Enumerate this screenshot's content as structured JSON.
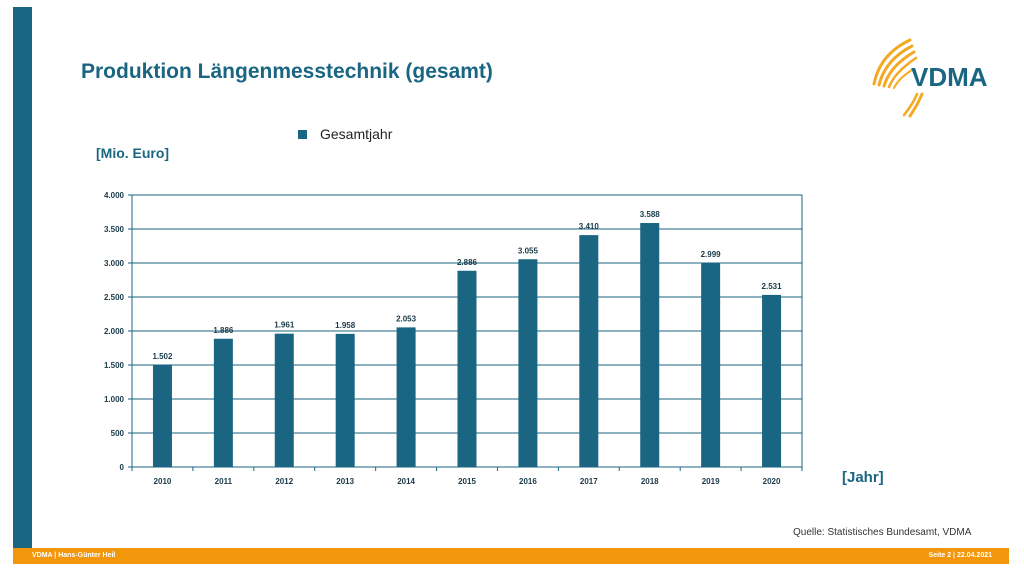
{
  "slide": {
    "title": "Produktion Längenmesstechnik (gesamt)",
    "y_unit_label": "[Mio. Euro]",
    "x_unit_label": "[Jahr]",
    "source": "Quelle: Statistisches Bundesamt, VDMA",
    "footer_left": "VDMA | Hans-Günter Heil",
    "footer_right": "Seite 2 | 22.04.2021",
    "logo_text": "VDMA"
  },
  "colors": {
    "primary": "#1a6682",
    "accent": "#f2960c",
    "logo_arc": "#f5a821"
  },
  "chart_data": {
    "type": "bar",
    "categories": [
      "2010",
      "2011",
      "2012",
      "2013",
      "2014",
      "2015",
      "2016",
      "2017",
      "2018",
      "2019",
      "2020"
    ],
    "series": [
      {
        "name": "Gesamtjahr",
        "values": [
          1502,
          1886,
          1961,
          1958,
          2053,
          2886,
          3055,
          3410,
          3588,
          2999,
          2531
        ],
        "labels": [
          "1.502",
          "1.886",
          "1.961",
          "1.958",
          "2.053",
          "2.886",
          "3.055",
          "3.410",
          "3.588",
          "2.999",
          "2.531"
        ]
      }
    ],
    "ylim": [
      0,
      4000
    ],
    "yticks": [
      0,
      500,
      1000,
      1500,
      2000,
      2500,
      3000,
      3500,
      4000
    ],
    "ytick_labels": [
      "0",
      "500",
      "1.000",
      "1.500",
      "2.000",
      "2.500",
      "3.000",
      "3.500",
      "4.000"
    ],
    "grid": true,
    "legend": "top"
  }
}
